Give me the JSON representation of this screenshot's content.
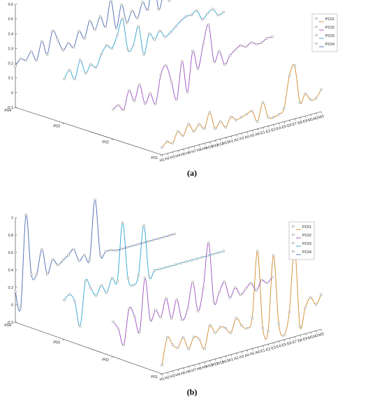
{
  "chart_data": [
    {
      "type": "line",
      "panel_label": "(a)",
      "z_categories": [
        "P01",
        "P02",
        "P03",
        "P04"
      ],
      "x_categories": [
        "H1",
        "H2",
        "H3",
        "H4",
        "H5",
        "H6",
        "H7",
        "H8",
        "H9",
        "H10",
        "H11",
        "H12",
        "H13",
        "A1",
        "A2",
        "A3",
        "A4",
        "A5",
        "A6",
        "E1",
        "E2",
        "E3",
        "E4",
        "E5",
        "E6",
        "E7",
        "E8",
        "E9",
        "M1",
        "M2",
        "M3"
      ],
      "yticks": [
        "-0.1",
        "0",
        "0.1",
        "0.2",
        "0.3",
        "0.4",
        "0.5",
        "0.6"
      ],
      "ylim": [
        -0.1,
        0.6
      ],
      "legend": [
        "PC01",
        "PC02",
        "PC03",
        "PC04"
      ],
      "series_colors": [
        "#d08a2a",
        "#9a4fbf",
        "#2ba4d0",
        "#4a69b0"
      ],
      "series": [
        {
          "values": [
            -0.05,
            -0.02,
            -0.04,
            0.03,
            -0.01,
            0.06,
            0.0,
            0.04,
            0.0,
            0.1,
            -0.02,
            0.02,
            -0.03,
            0.03,
            0.0,
            0.01,
            0.02,
            0.03,
            -0.05,
            0.07,
            -0.04,
            -0.05,
            -0.04,
            -0.01,
            0.2,
            0.26,
            0.0,
            0.05,
            0.0,
            0.0,
            0.05
          ]
        },
        {
          "values": [
            0.1,
            0.12,
            0.08,
            0.2,
            0.12,
            0.22,
            0.08,
            0.14,
            0.06,
            0.25,
            0.3,
            0.18,
            0.05,
            0.3,
            0.08,
            0.35,
            0.22,
            0.38,
            0.5,
            0.24,
            0.3,
            0.2,
            0.25,
            0.28,
            0.3,
            0.28,
            0.3,
            0.28,
            0.28,
            0.3,
            0.3
          ]
        },
        {
          "values": [
            0.2,
            0.25,
            0.18,
            0.3,
            0.2,
            0.25,
            0.22,
            0.3,
            0.35,
            0.32,
            0.4,
            0.5,
            0.28,
            0.3,
            0.42,
            0.22,
            0.35,
            0.3,
            0.35,
            0.3,
            0.32,
            0.35,
            0.38,
            0.4,
            0.4,
            0.42,
            0.35,
            0.38,
            0.4,
            0.35,
            0.36
          ]
        },
        {
          "values": [
            0.18,
            0.22,
            0.2,
            0.25,
            0.18,
            0.3,
            0.2,
            0.35,
            0.28,
            0.2,
            0.24,
            0.2,
            0.3,
            0.24,
            0.35,
            0.28,
            0.36,
            0.28,
            0.45,
            0.25,
            0.4,
            0.27,
            0.34,
            0.28,
            0.38,
            0.32,
            0.54,
            0.3,
            0.4,
            0.34,
            0.38
          ]
        }
      ]
    },
    {
      "type": "line",
      "panel_label": "(b)",
      "z_categories": [
        "P01",
        "P02",
        "P03",
        "P04"
      ],
      "x_categories": [
        "H1",
        "H2",
        "H3",
        "H4",
        "H5",
        "H6",
        "H7",
        "H8",
        "H9",
        "H10",
        "H11",
        "H12",
        "H13",
        "A1",
        "A2",
        "A3",
        "A4",
        "A5",
        "A6",
        "E1",
        "E2",
        "E3",
        "E4",
        "E5",
        "E6",
        "E7",
        "E8",
        "E9",
        "M1",
        "M2",
        "M3"
      ],
      "yticks": [
        "-0.2",
        "0",
        "0.2",
        "0.4",
        "0.6",
        "0.8",
        "1"
      ],
      "ylim": [
        -0.2,
        1.0
      ],
      "legend": [
        "PC01",
        "PC02",
        "PC03",
        "PC04"
      ],
      "series_colors": [
        "#d08a2a",
        "#9a4fbf",
        "#2ba4d0",
        "#4a69b0"
      ],
      "series": [
        {
          "values": [
            -0.1,
            0.2,
            0.1,
            0.05,
            0.15,
            0.0,
            0.12,
            0.08,
            -0.05,
            0.2,
            0.1,
            0.15,
            0.12,
            0.05,
            0.2,
            0.1,
            0.05,
            0.15,
            0.9,
            0.0,
            -0.05,
            0.8,
            0.0,
            -0.15,
            0.1,
            0.82,
            -0.1,
            0.1,
            0.2,
            0.1,
            0.2
          ]
        },
        {
          "values": [
            0.2,
            0.1,
            -0.1,
            0.3,
            0.2,
            0.0,
            0.6,
            0.1,
            0.2,
            0.1,
            0.3,
            0.05,
            0.25,
            0.0,
            0.1,
            0.4,
            0.05,
            0.3,
            0.8,
            0.1,
            0.2,
            0.3,
            0.1,
            0.2,
            0.1,
            0.15,
            0.2,
            0.1,
            0.2,
            0.15,
            0.2
          ]
        },
        {
          "values": [
            0.25,
            0.3,
            0.2,
            -0.1,
            0.4,
            0.3,
            0.2,
            0.3,
            0.2,
            0.35,
            0.3,
            0.95,
            0.3,
            0.2,
            0.3,
            0.85,
            0.25,
            0.3,
            0.3,
            0.3,
            0.3,
            0.3,
            0.3,
            0.3,
            0.3,
            0.3,
            0.3,
            0.3,
            0.3,
            0.3,
            0.3
          ]
        },
        {
          "values": [
            0.15,
            -0.05,
            1.0,
            0.3,
            0.28,
            0.55,
            0.25,
            0.4,
            0.32,
            0.36,
            0.4,
            0.45,
            0.3,
            0.35,
            0.28,
            0.95,
            0.3,
            0.32,
            0.32,
            0.3,
            0.3,
            0.3,
            0.3,
            0.3,
            0.3,
            0.3,
            0.3,
            0.3,
            0.3,
            0.3,
            0.3
          ]
        }
      ]
    }
  ]
}
